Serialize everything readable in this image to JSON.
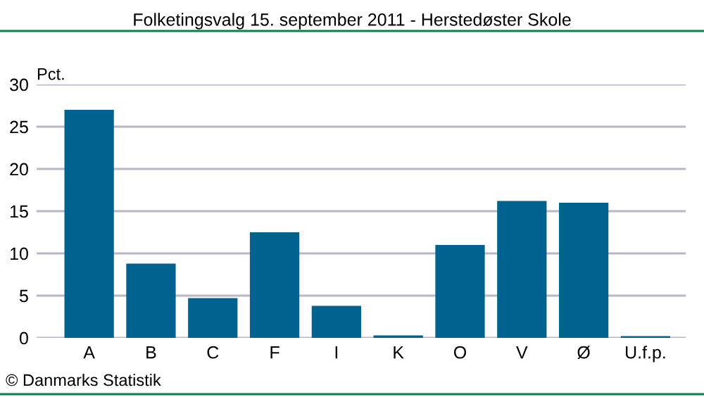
{
  "chart_data": {
    "type": "bar",
    "title": "Folketingsvalg 15. september 2011 - Herstedøster Skole",
    "ylabel": "Pct.",
    "categories": [
      "A",
      "B",
      "C",
      "F",
      "I",
      "K",
      "O",
      "V",
      "Ø",
      "U.f.p."
    ],
    "values": [
      27.0,
      8.8,
      4.7,
      12.5,
      3.8,
      0.3,
      11.0,
      16.2,
      16.0,
      0.2
    ],
    "color": "#00628f",
    "ylim": [
      0,
      30
    ],
    "yticks": [
      0,
      5,
      10,
      15,
      20,
      25,
      30
    ],
    "grid": "y",
    "annotations": [
      "© Danmarks Statistik"
    ]
  }
}
